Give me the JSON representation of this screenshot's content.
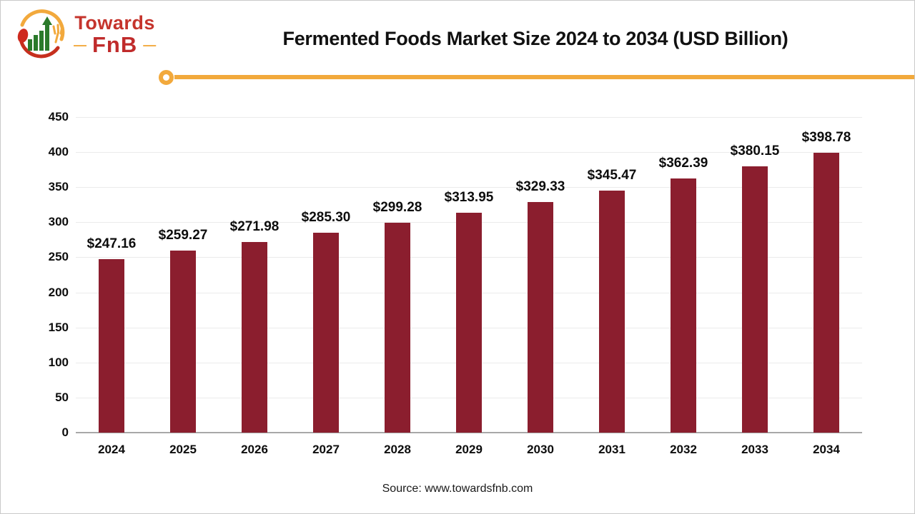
{
  "header": {
    "logo": {
      "towards": "Towards",
      "fnb": "FnB",
      "dash": "—"
    },
    "title": "Fermented Foods Market Size 2024 to 2034 (USD Billion)"
  },
  "chart_data": {
    "type": "bar",
    "title": "Fermented Foods Market Size 2024 to 2034 (USD Billion)",
    "categories": [
      "2024",
      "2025",
      "2026",
      "2027",
      "2028",
      "2029",
      "2030",
      "2031",
      "2032",
      "2033",
      "2034"
    ],
    "values": [
      247.16,
      259.27,
      271.98,
      285.3,
      299.28,
      313.95,
      329.33,
      345.47,
      362.39,
      380.15,
      398.78
    ],
    "value_labels": [
      "$247.16",
      "$259.27",
      "$271.98",
      "$285.30",
      "$299.28",
      "$313.95",
      "$329.33",
      "$345.47",
      "$362.39",
      "$380.15",
      "$398.78"
    ],
    "xlabel": "",
    "ylabel": "",
    "ylim": [
      0,
      450
    ],
    "yticks": [
      0,
      50,
      100,
      150,
      200,
      250,
      300,
      350,
      400,
      450
    ],
    "grid": "horizontal",
    "legend": "none",
    "bar_color": "#8b1e2e"
  },
  "footer": {
    "source": "Source: www.towardsfnb.com"
  },
  "colors": {
    "bar": "#8b1e2e",
    "accent_gold": "#f2a93c",
    "logo_red": "#c5342c",
    "logo_dark_red": "#c62f1e",
    "logo_green": "#2b7a2b",
    "gridline": "#ebebeb",
    "axis": "#a8a8a8"
  }
}
